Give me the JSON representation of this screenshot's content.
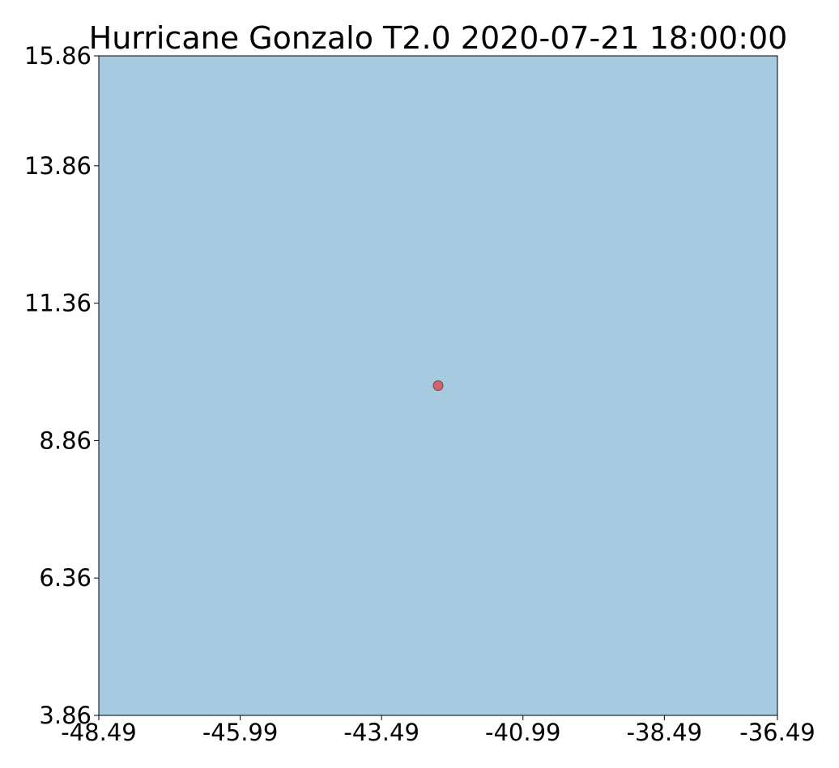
{
  "chart_data": {
    "type": "scatter",
    "title": "Hurricane Gonzalo T2.0 2020-07-21 18:00:00",
    "xlabel": "",
    "ylabel": "",
    "xlim": [
      -48.49,
      -36.49
    ],
    "ylim": [
      3.86,
      15.86
    ],
    "x_ticks": [
      "-48.49",
      "-45.99",
      "-43.49",
      "-40.99",
      "-38.49",
      "-36.49"
    ],
    "x_tick_values": [
      -48.49,
      -45.99,
      -43.49,
      -40.99,
      -38.49,
      -36.49
    ],
    "y_ticks": [
      "3.86",
      "6.36",
      "8.86",
      "11.36",
      "13.86",
      "15.86"
    ],
    "y_tick_values": [
      3.86,
      6.36,
      8.86,
      11.36,
      13.86,
      15.86
    ],
    "grid": false,
    "points": [
      {
        "x": -42.49,
        "y": 9.86
      }
    ],
    "colors": {
      "ocean": "#a6cae0",
      "marker_fill": "#d1646a",
      "marker_edge": "#6b4650",
      "frame": "#000000"
    }
  }
}
